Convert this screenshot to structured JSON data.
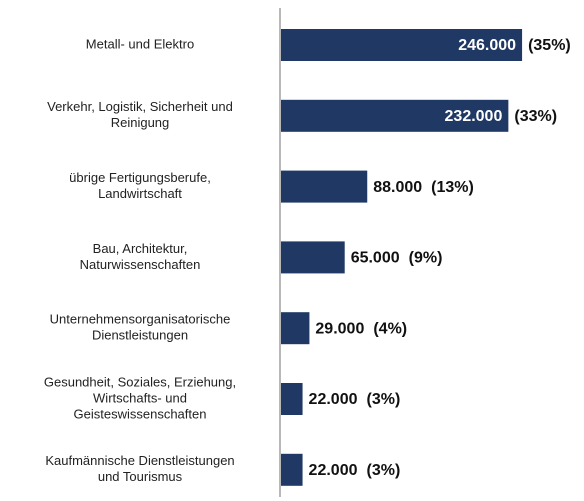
{
  "chart_data": {
    "type": "hbar",
    "categories": [
      [
        "Metall- und Elektro"
      ],
      [
        "Verkehr, Logistik, Sicherheit und",
        "Reinigung"
      ],
      [
        "übrige Fertigungsberufe,",
        "Landwirtschaft"
      ],
      [
        "Bau, Architektur,",
        "Naturwissenschaften"
      ],
      [
        "Unternehmensorganisatorische",
        "Dienstleistungen"
      ],
      [
        "Gesundheit, Soziales, Erziehung,",
        "Wirtschafts- und",
        "Geisteswissenschaften"
      ],
      [
        "Kaufmännische Dienstleistungen",
        "und Tourismus"
      ]
    ],
    "values": [
      246000,
      232000,
      88000,
      65000,
      29000,
      22000,
      22000
    ],
    "value_labels": [
      "246.000",
      "232.000",
      "88.000",
      "65.000",
      "29.000",
      "22.000",
      "22.000"
    ],
    "share_labels": [
      "(35%)",
      "(33%)",
      "(13%)",
      "(9%)",
      "(4%)",
      "(3%)",
      "(3%)"
    ],
    "color": "#1f3864",
    "xlim": [
      0,
      250000
    ]
  }
}
